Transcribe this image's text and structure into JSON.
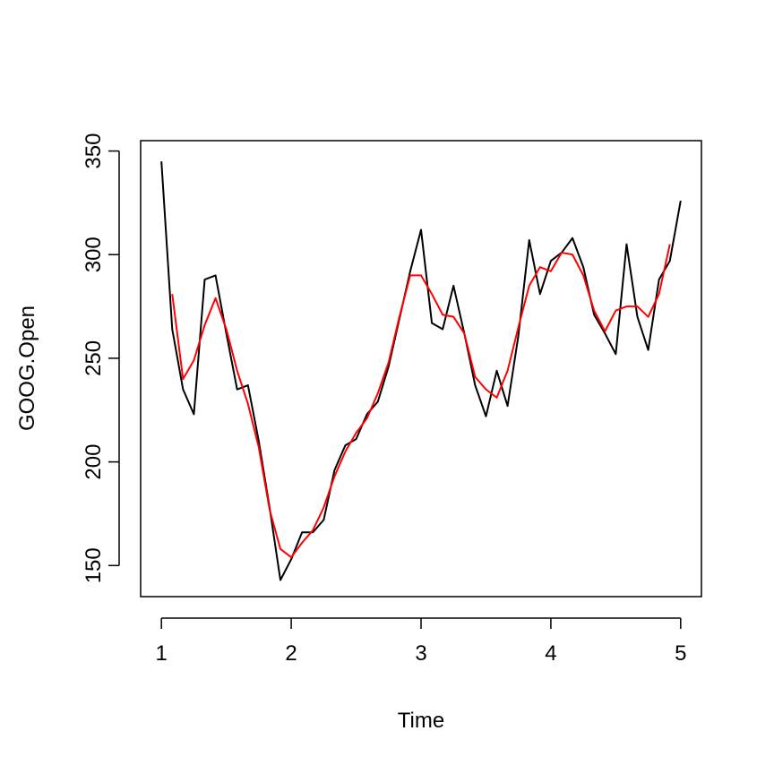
{
  "chart_data": {
    "type": "line",
    "xlabel": "Time",
    "ylabel": "GOOG.Open",
    "xlim": [
      0.84,
      5.16
    ],
    "ylim": [
      135,
      355
    ],
    "x_ticks": [
      1,
      2,
      3,
      4,
      5
    ],
    "y_ticks": [
      150,
      200,
      250,
      300,
      350
    ],
    "grid": false,
    "series": [
      {
        "color": "#000000",
        "x": [
          1.0,
          1.0833,
          1.1667,
          1.25,
          1.3333,
          1.4167,
          1.5,
          1.5833,
          1.6667,
          1.75,
          1.8333,
          1.9167,
          2.0,
          2.0833,
          2.1667,
          2.25,
          2.3333,
          2.4167,
          2.5,
          2.5833,
          2.6667,
          2.75,
          2.8333,
          2.9167,
          3.0,
          3.0833,
          3.1667,
          3.25,
          3.3333,
          3.4167,
          3.5,
          3.5833,
          3.6667,
          3.75,
          3.8333,
          3.9167,
          4.0,
          4.0833,
          4.1667,
          4.25,
          4.3333,
          4.4167,
          4.5,
          4.5833,
          4.6667,
          4.75,
          4.8333,
          4.9167,
          5.0
        ],
        "values": [
          345,
          264,
          235,
          223,
          288,
          290,
          262,
          235,
          237,
          210,
          178,
          143,
          153,
          166,
          166,
          172,
          196,
          208,
          211,
          223,
          229,
          246,
          269,
          292,
          312,
          267,
          264,
          285,
          262,
          237,
          222,
          244,
          227,
          261,
          307,
          281,
          297,
          301,
          308,
          294,
          271,
          262,
          252,
          305,
          270,
          254,
          288,
          297,
          326
        ]
      },
      {
        "color": "#ff0000",
        "x": [
          1.0833,
          1.1667,
          1.25,
          1.3333,
          1.4167,
          1.5,
          1.5833,
          1.6667,
          1.75,
          1.8333,
          1.9167,
          2.0,
          2.0833,
          2.1667,
          2.25,
          2.3333,
          2.4167,
          2.5,
          2.5833,
          2.6667,
          2.75,
          2.8333,
          2.9167,
          3.0,
          3.0833,
          3.1667,
          3.25,
          3.3333,
          3.4167,
          3.5,
          3.5833,
          3.6667,
          3.75,
          3.8333,
          3.9167,
          4.0,
          4.0833,
          4.1667,
          4.25,
          4.3333,
          4.4167,
          4.5,
          4.5833,
          4.6667,
          4.75,
          4.8333,
          4.9167
        ],
        "values": [
          281,
          240,
          249,
          266,
          279,
          264,
          244,
          228,
          207,
          177,
          158,
          154,
          161,
          167,
          178,
          193,
          205,
          214,
          221,
          233,
          248,
          270,
          290,
          290,
          281,
          271,
          270,
          262,
          241,
          235,
          231,
          244,
          265,
          285,
          294,
          292,
          301,
          300,
          290,
          273,
          263,
          273,
          275,
          275,
          270,
          281,
          305
        ]
      }
    ]
  }
}
